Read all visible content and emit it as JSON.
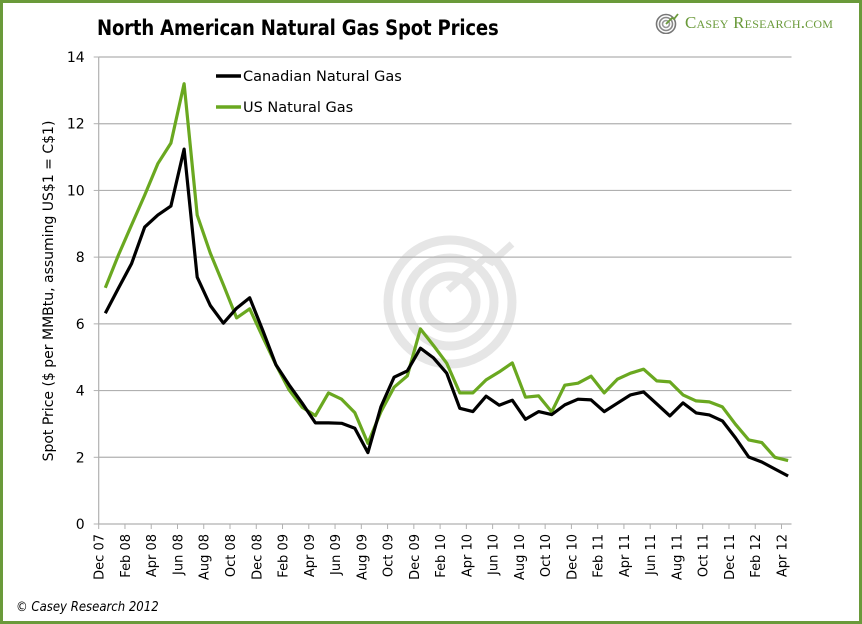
{
  "header": {
    "title": "North American Natural Gas Spot Prices",
    "brand": "Casey Research.com",
    "brand_icon": "target-spiral-icon"
  },
  "footer": {
    "copyright": "© Casey Research 2012"
  },
  "colors": {
    "frame": "#6a9a3a",
    "canadian": "#000000",
    "us": "#6aa820",
    "grid": "#b0b0b0",
    "brand": "#6a9a3a",
    "watermark": "#e2e2e2"
  },
  "chart_data": {
    "type": "line",
    "title": "North American Natural Gas Spot Prices",
    "xlabel": "",
    "ylabel": "Spot Price ($ per MMBtu, assuming US$1 = C$1)",
    "ylim": [
      0,
      14
    ],
    "yticks": [
      0,
      2,
      4,
      6,
      8,
      10,
      12,
      14
    ],
    "grid": true,
    "legend_position": "top-left",
    "x": [
      "Dec 07",
      "Jan 08",
      "Feb 08",
      "Mar 08",
      "Apr 08",
      "May 08",
      "Jun 08",
      "Jul 08",
      "Aug 08",
      "Sep 08",
      "Oct 08",
      "Nov 08",
      "Dec 08",
      "Jan 09",
      "Feb 09",
      "Mar 09",
      "Apr 09",
      "May 09",
      "Jun 09",
      "Jul 09",
      "Aug 09",
      "Sep 09",
      "Oct 09",
      "Nov 09",
      "Dec 09",
      "Jan 10",
      "Feb 10",
      "Mar 10",
      "Apr 10",
      "May 10",
      "Jun 10",
      "Jul 10",
      "Aug 10",
      "Sep 10",
      "Oct 10",
      "Nov 10",
      "Dec 10",
      "Jan 11",
      "Feb 11",
      "Mar 11",
      "Apr 11",
      "May 11",
      "Jun 11",
      "Jul 11",
      "Aug 11",
      "Sep 11",
      "Oct 11",
      "Nov 11",
      "Dec 11",
      "Jan 12",
      "Feb 12",
      "Mar 12",
      "Apr 12"
    ],
    "x_tick_labels": [
      "Dec 07",
      "Feb 08",
      "Apr 08",
      "Jun 08",
      "Aug 08",
      "Oct 08",
      "Dec 08",
      "Feb 09",
      "Apr 09",
      "Jun 09",
      "Aug 09",
      "Oct 09",
      "Dec 09",
      "Feb 10",
      "Apr 10",
      "Jun 10",
      "Aug 10",
      "Oct 10",
      "Dec 10",
      "Feb 11",
      "Apr 11",
      "Jun 11",
      "Aug 11",
      "Oct 11",
      "Dec 11",
      "Feb 12",
      "Apr 12"
    ],
    "series": [
      {
        "name": "Canadian Natural Gas",
        "color": "#000000",
        "values": [
          6.32,
          7.07,
          7.8,
          8.9,
          9.26,
          9.53,
          11.24,
          7.4,
          6.55,
          6.02,
          6.47,
          6.78,
          5.8,
          4.77,
          4.17,
          3.62,
          3.03,
          3.03,
          3.02,
          2.87,
          2.14,
          3.52,
          4.4,
          4.59,
          5.27,
          4.98,
          4.52,
          3.47,
          3.37,
          3.83,
          3.56,
          3.71,
          3.14,
          3.37,
          3.28,
          3.57,
          3.74,
          3.72,
          3.37,
          3.62,
          3.87,
          3.96,
          3.6,
          3.24,
          3.63,
          3.33,
          3.27,
          3.09,
          2.58,
          2.01,
          1.86,
          1.65,
          1.44
        ]
      },
      {
        "name": "US Natural Gas",
        "color": "#6aa820",
        "values": [
          7.08,
          8.06,
          8.96,
          9.86,
          10.8,
          11.42,
          13.2,
          9.26,
          8.12,
          7.17,
          6.18,
          6.45,
          5.6,
          4.77,
          4.02,
          3.5,
          3.25,
          3.93,
          3.74,
          3.34,
          2.42,
          3.37,
          4.1,
          4.44,
          5.85,
          5.35,
          4.82,
          3.93,
          3.93,
          4.32,
          4.56,
          4.83,
          3.8,
          3.84,
          3.36,
          4.16,
          4.22,
          4.43,
          3.93,
          4.34,
          4.52,
          4.64,
          4.29,
          4.26,
          3.87,
          3.69,
          3.66,
          3.51,
          2.99,
          2.52,
          2.44,
          2.0,
          1.9
        ]
      }
    ]
  }
}
